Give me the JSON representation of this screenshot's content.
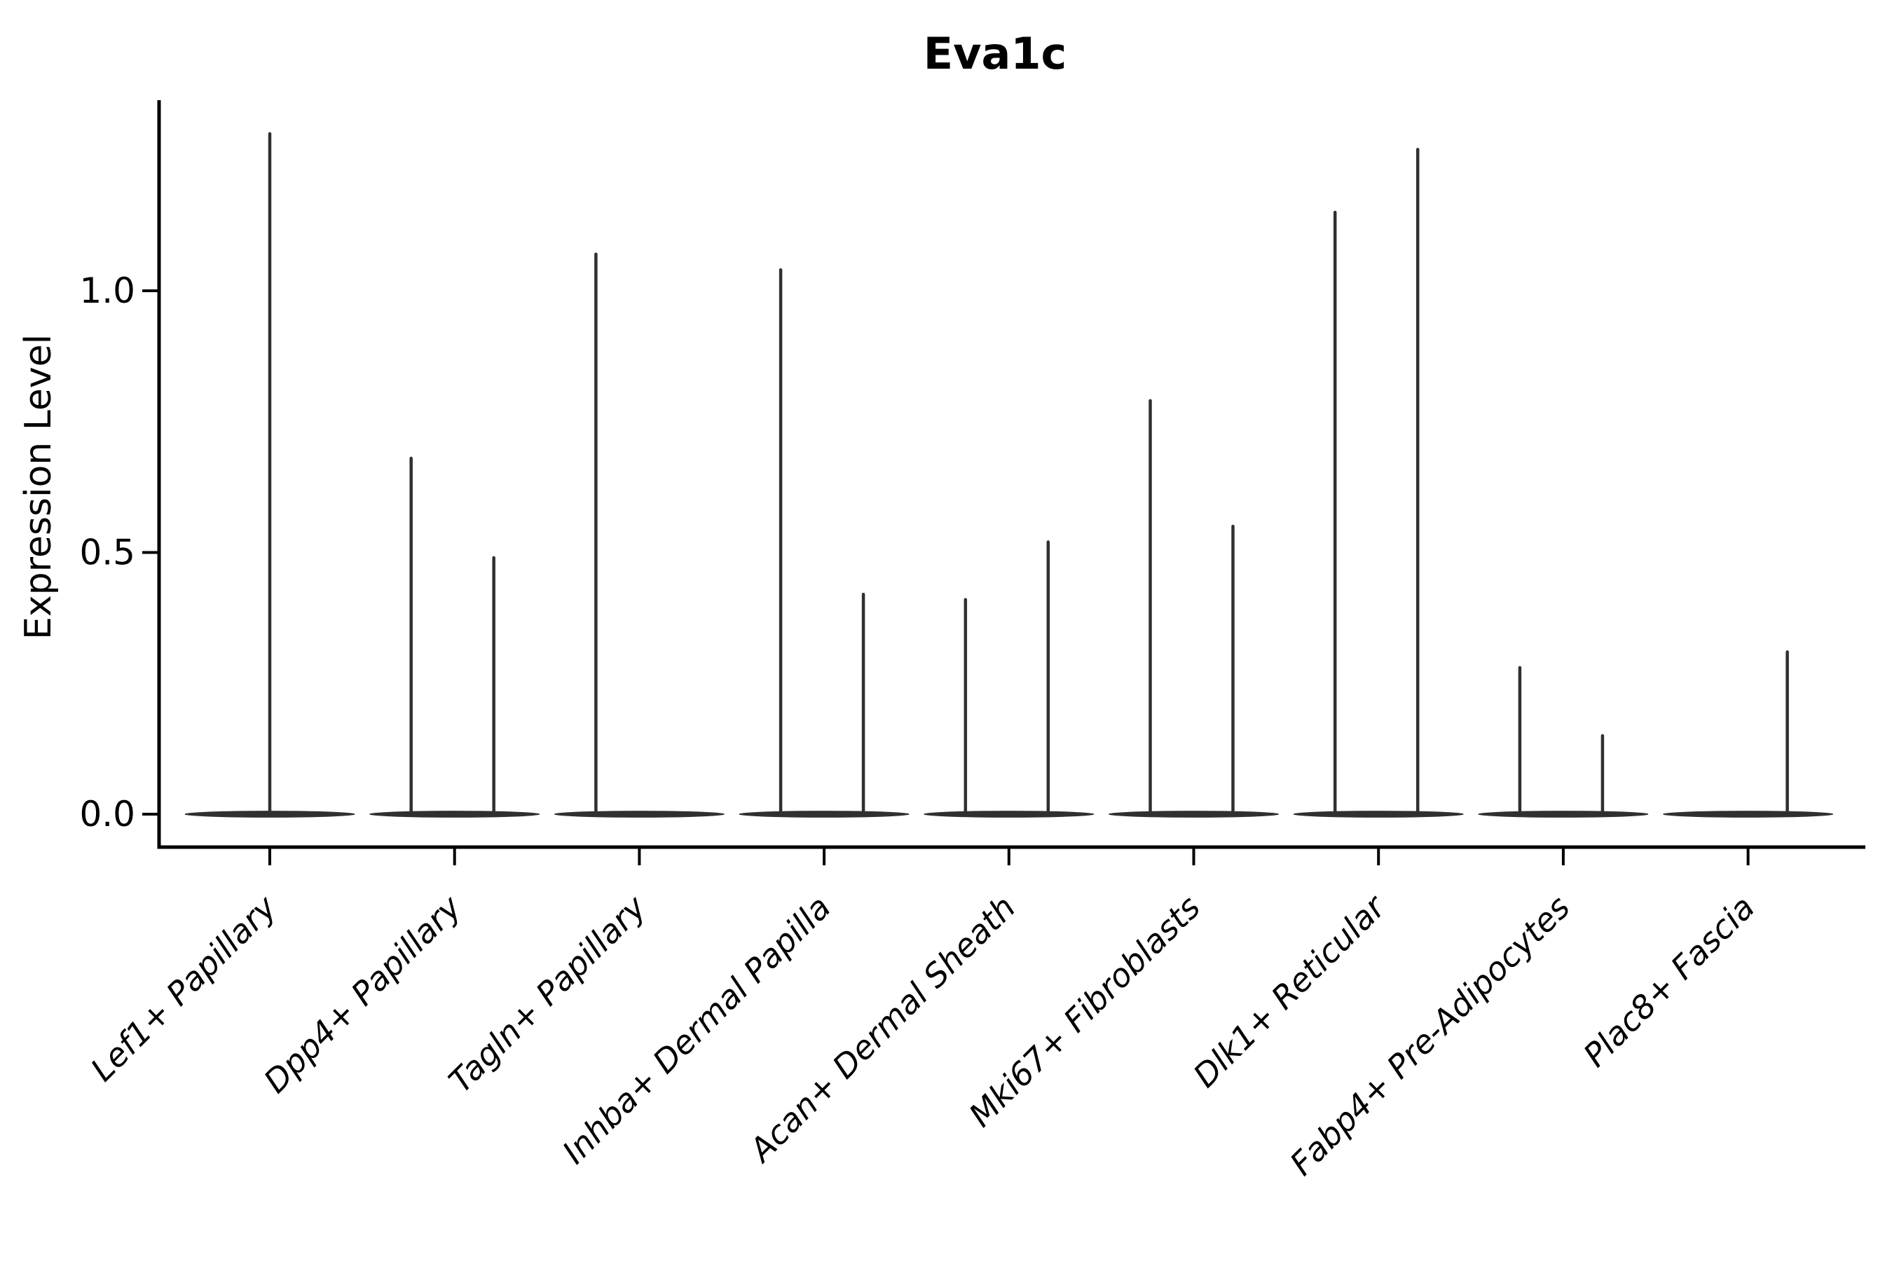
{
  "chart_data": {
    "type": "violin",
    "title": "Eva1c",
    "ylabel": "Expression Level",
    "xlabel": "",
    "grid": false,
    "legend": null,
    "yticks": [
      0.0,
      0.5,
      1.0
    ],
    "ylim": [
      -0.06,
      1.36
    ],
    "baseline_value": 0.0,
    "categories": [
      "Lef1+ Papillary",
      "Dpp4+ Papillary",
      "Tagln+ Papillary",
      "Inhba+ Dermal Papilla",
      "Acan+ Dermal Sheath",
      "Mki67+ Fibroblasts",
      "Dlk1+ Reticular",
      "Fabp4+ Pre-Adipocytes",
      "Plac8+ Fascia"
    ],
    "violins": [
      {
        "category": "Lef1+ Papillary",
        "spikes": [
          {
            "pos": "center",
            "max": 1.3
          }
        ]
      },
      {
        "category": "Dpp4+ Papillary",
        "spikes": [
          {
            "pos": "left",
            "max": 0.68
          },
          {
            "pos": "right",
            "max": 0.49
          }
        ]
      },
      {
        "category": "Tagln+ Papillary",
        "spikes": [
          {
            "pos": "left",
            "max": 1.07
          }
        ]
      },
      {
        "category": "Inhba+ Dermal Papilla",
        "spikes": [
          {
            "pos": "left",
            "max": 1.04
          },
          {
            "pos": "right",
            "max": 0.42
          }
        ]
      },
      {
        "category": "Acan+ Dermal Sheath",
        "spikes": [
          {
            "pos": "left",
            "max": 0.41
          },
          {
            "pos": "right",
            "max": 0.52
          }
        ]
      },
      {
        "category": "Mki67+ Fibroblasts",
        "spikes": [
          {
            "pos": "left",
            "max": 0.79
          },
          {
            "pos": "right",
            "max": 0.55
          }
        ]
      },
      {
        "category": "Dlk1+ Reticular",
        "spikes": [
          {
            "pos": "left",
            "max": 1.15
          },
          {
            "pos": "right",
            "max": 1.27
          }
        ]
      },
      {
        "category": "Fabp4+ Pre-Adipocytes",
        "spikes": [
          {
            "pos": "left",
            "max": 0.28
          },
          {
            "pos": "right",
            "max": 0.15
          }
        ]
      },
      {
        "category": "Plac8+ Fascia",
        "spikes": [
          {
            "pos": "right",
            "max": 0.31
          }
        ]
      }
    ],
    "colors": {
      "ink": "#000000",
      "violin": "#303030"
    }
  }
}
